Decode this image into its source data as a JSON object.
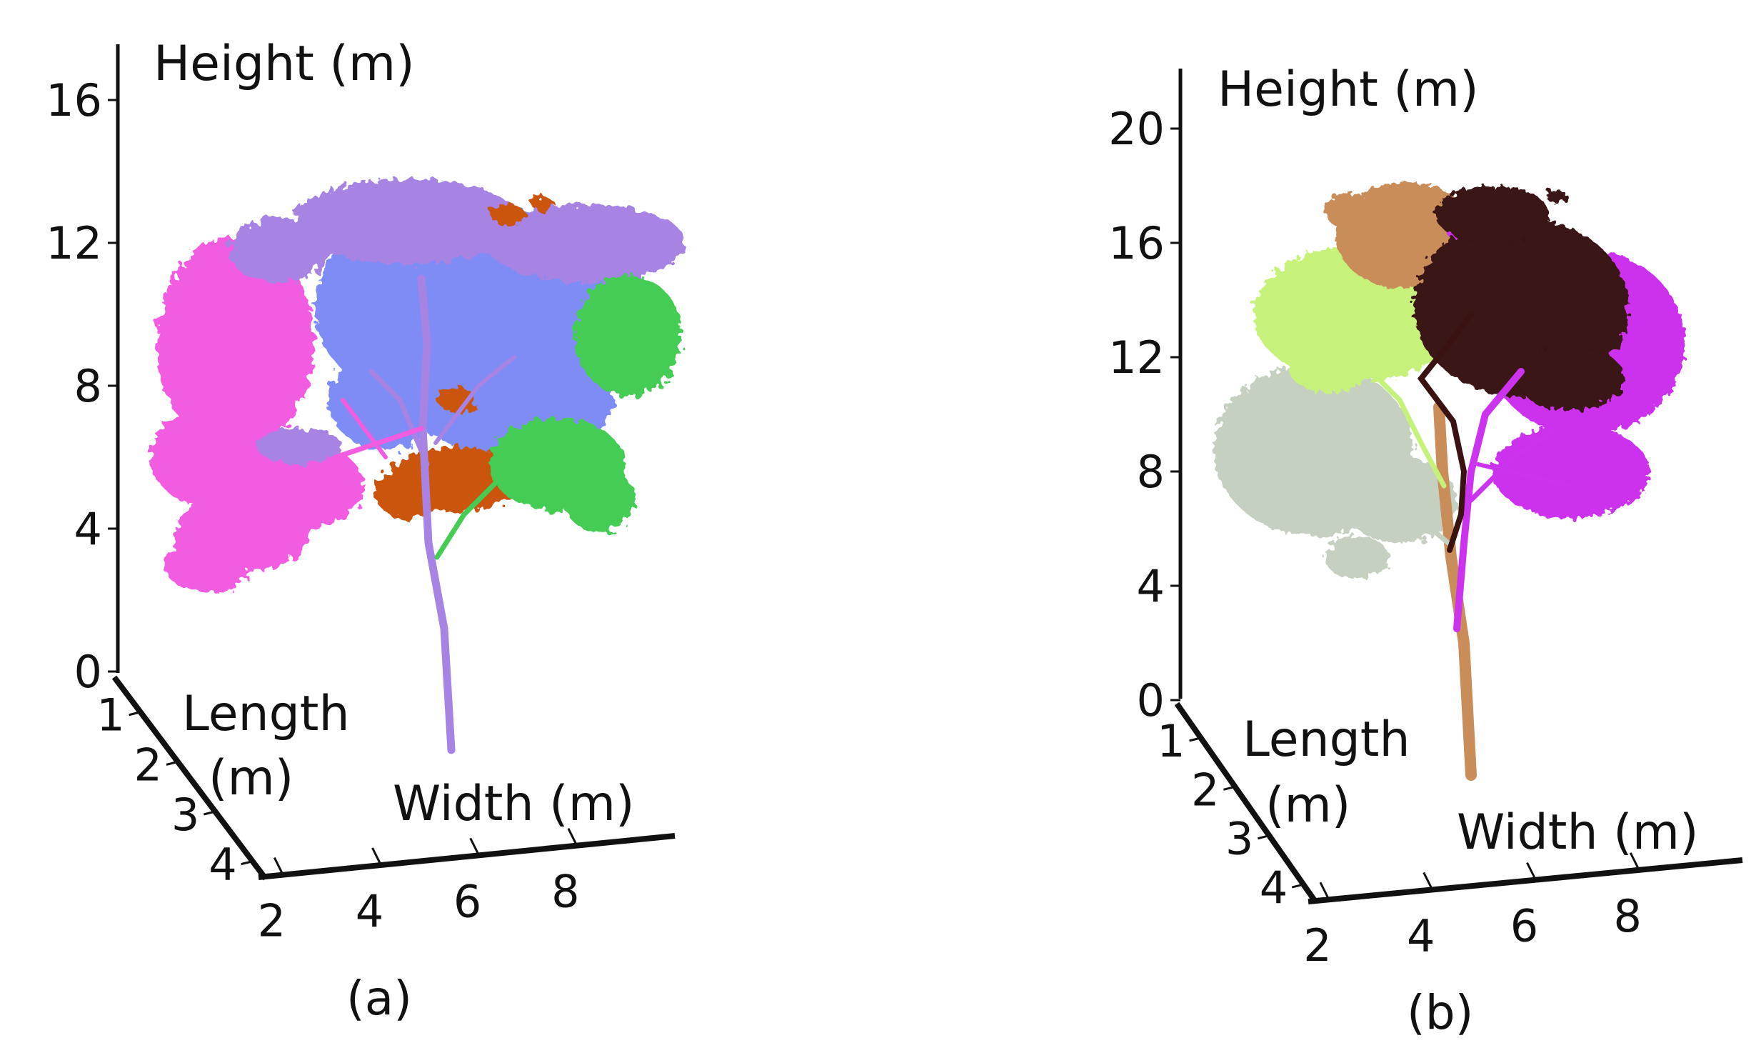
{
  "chart_data": [
    {
      "type": "scatter",
      "subtype": "3d-point-cloud",
      "caption": "(a)",
      "axes": {
        "height": {
          "label": "Height (m)",
          "ticks": [
            "0",
            "4",
            "8",
            "12",
            "16"
          ],
          "range": [
            0,
            18
          ]
        },
        "length": {
          "label": "Length (m)",
          "ticks": [
            "1",
            "2",
            "3",
            "4"
          ],
          "range": [
            0.5,
            4.5
          ]
        },
        "width": {
          "label": "Width (m)",
          "ticks": [
            "2",
            "4",
            "6",
            "8"
          ],
          "range": [
            1,
            10
          ]
        }
      },
      "segments": [
        {
          "color": "#f25ce0",
          "role": "crown cluster"
        },
        {
          "color": "#7f8cf6",
          "role": "crown cluster"
        },
        {
          "color": "#a783e4",
          "role": "stem and crown cluster"
        },
        {
          "color": "#cc5511",
          "role": "crown cluster"
        },
        {
          "color": "#44cc55",
          "role": "crown cluster"
        }
      ]
    },
    {
      "type": "scatter",
      "subtype": "3d-point-cloud",
      "caption": "(b)",
      "axes": {
        "height": {
          "label": "Height (m)",
          "ticks": [
            "0",
            "4",
            "8",
            "12",
            "16",
            "20"
          ],
          "range": [
            0,
            22
          ]
        },
        "length": {
          "label": "Length (m)",
          "ticks": [
            "1",
            "2",
            "3",
            "4"
          ],
          "range": [
            0.5,
            4.5
          ]
        },
        "width": {
          "label": "Width (m)",
          "ticks": [
            "2",
            "4",
            "6",
            "8"
          ],
          "range": [
            1,
            10
          ]
        }
      },
      "segments": [
        {
          "color": "#c6d0c0",
          "role": "crown cluster"
        },
        {
          "color": "#c6f27c",
          "role": "crown cluster"
        },
        {
          "color": "#c98d5a",
          "role": "stem and crown cluster"
        },
        {
          "color": "#3a1212",
          "role": "crown cluster"
        },
        {
          "color": "#cc33ee",
          "role": "crown cluster"
        }
      ]
    }
  ]
}
